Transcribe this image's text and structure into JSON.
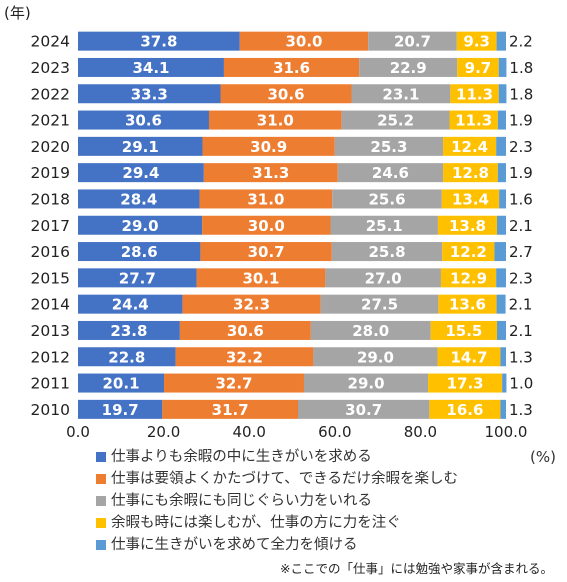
{
  "chart_data": {
    "type": "bar",
    "orientation": "horizontal",
    "stacked": true,
    "y_unit_label": "(年)",
    "x_unit_label": "(%)",
    "categories": [
      "2024",
      "2023",
      "2022",
      "2021",
      "2020",
      "2019",
      "2018",
      "2017",
      "2016",
      "2015",
      "2014",
      "2013",
      "2012",
      "2011",
      "2010"
    ],
    "xlim": [
      0,
      100
    ],
    "xticks": [
      "0.0",
      "20.0",
      "40.0",
      "60.0",
      "80.0",
      "100.0"
    ],
    "grid": false,
    "legend_position": "bottom",
    "series": [
      {
        "name": "仕事よりも余暇の中に生きがいを求める",
        "color": "#4472C4",
        "values": [
          37.8,
          34.1,
          33.3,
          30.6,
          29.1,
          29.4,
          28.4,
          29.0,
          28.6,
          27.7,
          24.4,
          23.8,
          22.8,
          20.1,
          19.7
        ]
      },
      {
        "name": "仕事は要領よくかたづけて、できるだけ余暇を楽しむ",
        "color": "#ED7D31",
        "values": [
          30.0,
          31.6,
          30.6,
          31.0,
          30.9,
          31.3,
          31.0,
          30.0,
          30.7,
          30.1,
          32.3,
          30.6,
          32.2,
          32.7,
          31.7
        ]
      },
      {
        "name": "仕事にも余暇にも同じぐらい力をいれる",
        "color": "#A5A5A5",
        "values": [
          20.7,
          22.9,
          23.1,
          25.2,
          25.3,
          24.6,
          25.6,
          25.1,
          25.8,
          27.0,
          27.5,
          28.0,
          29.0,
          29.0,
          30.7
        ]
      },
      {
        "name": "余暇も時には楽しむが、仕事の方に力を注ぐ",
        "color": "#FFC000",
        "values": [
          9.3,
          9.7,
          11.3,
          11.3,
          12.4,
          12.8,
          13.4,
          13.8,
          12.2,
          12.9,
          13.6,
          15.5,
          14.7,
          17.3,
          16.6
        ]
      },
      {
        "name": "仕事に生きがいを求めて全力を傾ける",
        "color": "#5B9BD5",
        "values": [
          2.2,
          1.8,
          1.8,
          1.9,
          2.3,
          1.9,
          1.6,
          2.1,
          2.7,
          2.3,
          2.1,
          2.1,
          1.3,
          1.0,
          1.3
        ]
      }
    ],
    "label_colors": [
      "#ffffff",
      "#ffffff",
      "#ffffff",
      "#ffffff",
      "#222222"
    ]
  },
  "note": "※ここでの「仕事」には勉強や家事が含まれる。"
}
